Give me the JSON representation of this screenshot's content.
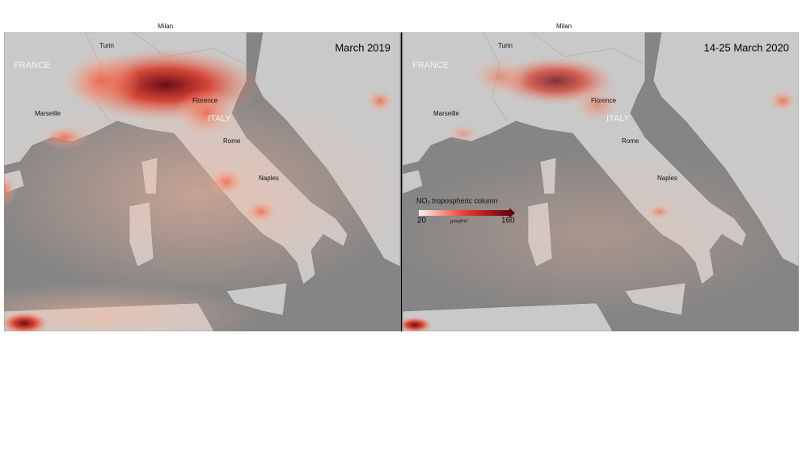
{
  "panels": [
    {
      "title": "March 2019",
      "labels": [
        "Milan",
        "Turin",
        "FRANCE",
        "Florence",
        "Marseille",
        "ITALY",
        "Rome",
        "Naples"
      ]
    },
    {
      "title": "14-25 March 2020",
      "labels": [
        "Milan",
        "Turin",
        "FRANCE",
        "Florence",
        "Marseille",
        "ITALY",
        "Rome",
        "Naples"
      ]
    }
  ],
  "legend": {
    "title": "NO₂ tropospheric column",
    "min": "20",
    "max": "160",
    "unit": "µmol/m²"
  }
}
